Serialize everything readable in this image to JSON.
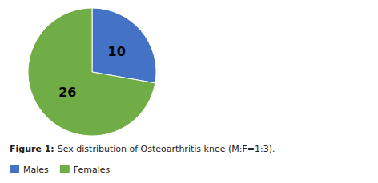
{
  "chart_data": {
    "type": "pie",
    "title": "Figure 1:",
    "subtitle": "Sex distribution of Osteoarthritis knee (M:F=1:3).",
    "categories": [
      "Males",
      "Females"
    ],
    "values": [
      10,
      26
    ],
    "colors": [
      "#4472C4",
      "#70AD47"
    ],
    "data_labels": true,
    "legend": "lower left"
  }
}
